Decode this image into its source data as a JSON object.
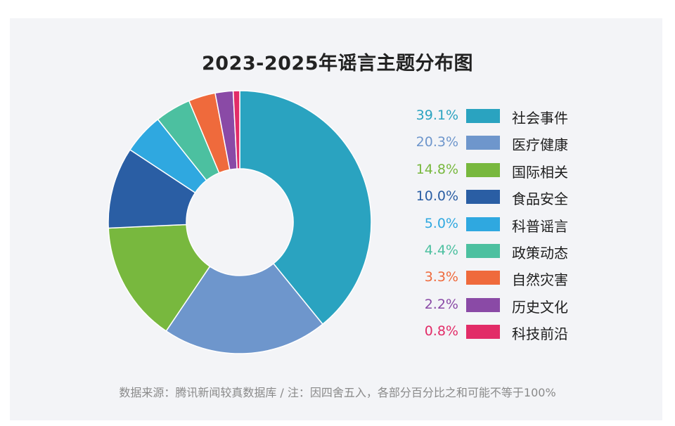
{
  "chart_data": {
    "type": "pie",
    "title": "2023-2025年谣言主题分布图",
    "categories": [
      "社会事件",
      "医疗健康",
      "国际相关",
      "食品安全",
      "科普谣言",
      "政策动态",
      "自然灾害",
      "历史文化",
      "科技前沿"
    ],
    "values": [
      39.1,
      20.3,
      14.8,
      10.0,
      5.0,
      4.4,
      3.3,
      2.2,
      0.8
    ],
    "value_labels": [
      "39.1%",
      "20.3%",
      "14.8%",
      "10.0%",
      "5.0%",
      "4.4%",
      "3.3%",
      "2.2%",
      "0.8%"
    ],
    "colors": [
      "#2aa3c0",
      "#6e96cc",
      "#78b83e",
      "#2a5ea4",
      "#2fa8e0",
      "#4cc0a0",
      "#ef6a3c",
      "#8a4aa6",
      "#e22c68"
    ],
    "legend_position": "right",
    "footnote": "数据来源：腾讯新闻较真数据库 / 注：因四舍五入，各部分百分比之和可能不等于100%"
  }
}
